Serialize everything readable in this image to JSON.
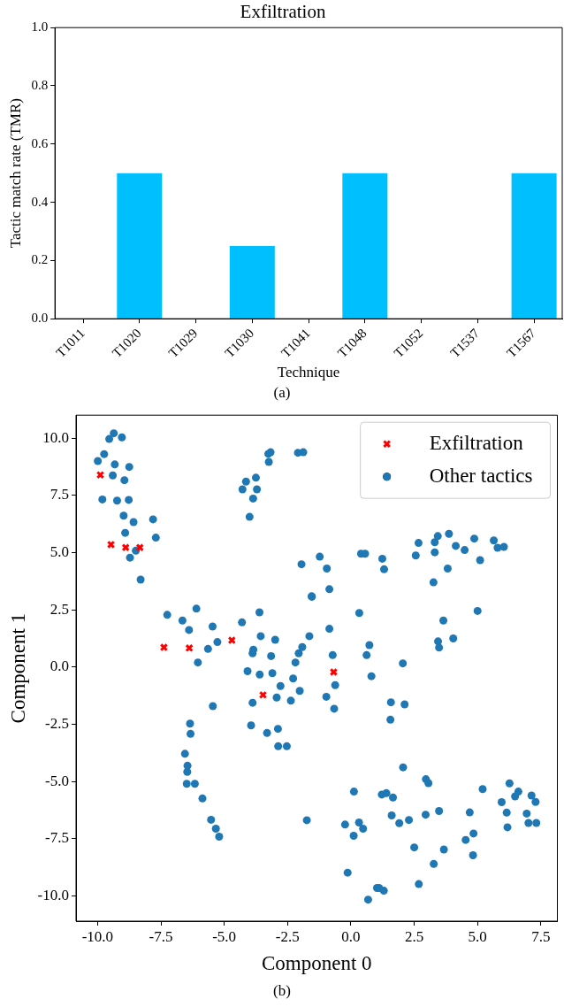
{
  "chart_data": [
    {
      "type": "bar",
      "title": "Exfiltration",
      "xlabel": "Technique",
      "ylabel": "Tactic match rate (TMR)",
      "categories": [
        "T1011",
        "T1020",
        "T1029",
        "T1030",
        "T1041",
        "T1048",
        "T1052",
        "T1537",
        "T1567"
      ],
      "values": [
        0,
        0.5,
        0,
        0.25,
        0,
        0.5,
        0,
        0,
        0.5
      ],
      "color": "#00bfff",
      "ylim": [
        0,
        1
      ],
      "yticks": [
        {
          "value": 0,
          "label": "0.0"
        },
        {
          "value": 0.2,
          "label": "0.2"
        },
        {
          "value": 0.4,
          "label": "0.4"
        },
        {
          "value": 0.6,
          "label": "0.6"
        },
        {
          "value": 0.8,
          "label": "0.8"
        },
        {
          "value": 1,
          "label": "1.0"
        }
      ],
      "grid": false,
      "legend": false,
      "annotations": [
        "(a)"
      ]
    },
    {
      "type": "scatter",
      "xlabel": "Component 0",
      "ylabel": "Component 1",
      "grid": false,
      "legend": "top right",
      "annotations": [
        "(b)"
      ],
      "xlim": [
        -10.85,
        8.15
      ],
      "xticks": [
        {
          "value": -10,
          "label": "-10.0"
        },
        {
          "value": -7.5,
          "label": "-7.5"
        },
        {
          "value": -5,
          "label": "-5.0"
        },
        {
          "value": -2.5,
          "label": "-2.5"
        },
        {
          "value": 0,
          "label": "0.0"
        },
        {
          "value": 2.5,
          "label": "2.5"
        },
        {
          "value": 5,
          "label": "5.0"
        },
        {
          "value": 7.5,
          "label": "7.5"
        }
      ],
      "ylim": [
        -11.1,
        11.0
      ],
      "yticks": [
        {
          "value": -10,
          "label": "-10.0"
        },
        {
          "value": -7.5,
          "label": "-7.5"
        },
        {
          "value": -5,
          "label": "-5.0"
        },
        {
          "value": -2.5,
          "label": "-2.5"
        },
        {
          "value": 0,
          "label": "0.0"
        },
        {
          "value": 2.5,
          "label": "2.5"
        },
        {
          "value": 5,
          "label": "5.0"
        },
        {
          "value": 7.5,
          "label": "7.5"
        },
        {
          "value": 10,
          "label": "10.0"
        }
      ],
      "series": [
        {
          "name": "Exfiltration",
          "color": "#ff0000",
          "marker": "cross",
          "x": [
            -9.89,
            -9.47,
            -8.89,
            -8.33,
            -7.38,
            -6.38,
            -4.7,
            -3.47,
            -0.68
          ],
          "values": [
            8.39,
            5.35,
            5.22,
            5.22,
            0.86,
            0.83,
            1.17,
            -1.22,
            -0.22
          ]
        },
        {
          "name": "Other tactics",
          "color": "#1f77b4",
          "marker": "circle",
          "x": [
            -9.36,
            -9.54,
            -9.04,
            -9.74,
            -9.99,
            -9.32,
            -8.75,
            -9.4,
            -8.94,
            -9.81,
            -9.23,
            -8.77,
            -8.97,
            -8.58,
            -7.81,
            -8.91,
            -7.7,
            -8.49,
            -8.72,
            -8.3,
            -3.26,
            -3.17,
            -3.24,
            -2.09,
            -1.88,
            -4.14,
            -3.75,
            -4.28,
            -3.71,
            -3.86,
            -4.0,
            -1.95,
            -1.55,
            -7.25,
            -6.65,
            -6.1,
            -6.39,
            -5.46,
            -5.64,
            -5.27,
            -6.04,
            -4.3,
            -3.61,
            -3.56,
            -2.99,
            -1.64,
            -3.85,
            -3.88,
            -3.15,
            -1.92,
            -2.06,
            -2.19,
            -4.08,
            -3.6,
            -3.1,
            -2.28,
            -1.23,
            -0.95,
            -0.85,
            -1.54,
            0.33,
            -0.85,
            -0.72,
            0.73,
            0.62,
            2.05,
            0.81,
            0.4,
            0.56,
            1.24,
            1.31,
            2.56,
            2.67,
            3.31,
            3.43,
            3.87,
            4.14,
            4.49,
            4.87,
            5.1,
            5.64,
            5.79,
            6.04,
            3.31,
            3.82,
            3.26,
            5.0,
            3.65,
            3.44,
            3.48,
            4.04,
            -2.78,
            -2.02,
            -2.93,
            -2.37,
            -3.88,
            -5.45,
            -6.35,
            -6.33,
            -3.94,
            -3.31,
            -2.88,
            -2.87,
            -2.53,
            -6.55,
            -6.45,
            -6.46,
            -6.48,
            -6.16,
            -5.86,
            -5.52,
            -5.33,
            -5.2,
            -1.74,
            -0.62,
            -0.97,
            -0.66,
            1.58,
            2.12,
            1.56,
            2.06,
            2.96,
            3.06,
            0.12,
            1.22,
            1.4,
            1.66,
            -0.23,
            0.32,
            0.48,
            0.11,
            1.61,
            1.91,
            2.29,
            2.95,
            3.48,
            5.2,
            4.69,
            6.26,
            6.61,
            6.48,
            5.95,
            7.13,
            7.29,
            6.15,
            6.94,
            6.18,
            7.01,
            7.32,
            4.84,
            4.53,
            4.82,
            2.5,
            3.67,
            3.27,
            -0.13,
            1.03,
            1.11,
            1.3,
            2.68,
            0.68
          ],
          "values": [
            10.21,
            9.96,
            10.03,
            9.3,
            9.0,
            8.85,
            8.74,
            8.37,
            8.16,
            7.32,
            7.27,
            7.3,
            6.61,
            6.33,
            6.45,
            5.86,
            5.65,
            5.08,
            4.78,
            3.82,
            9.31,
            9.38,
            8.96,
            9.36,
            9.38,
            8.1,
            8.27,
            7.76,
            7.76,
            7.36,
            6.56,
            4.49,
            3.09,
            2.28,
            2.03,
            2.55,
            1.62,
            1.77,
            0.79,
            1.09,
            0.2,
            1.95,
            2.39,
            1.35,
            1.19,
            1.35,
            0.76,
            0.6,
            0.48,
            0.87,
            0.6,
            0.2,
            -0.18,
            -0.33,
            -0.27,
            -0.5,
            4.82,
            4.3,
            3.4,
            3.07,
            2.36,
            1.67,
            0.52,
            0.96,
            0.52,
            0.16,
            -0.4,
            4.95,
            4.95,
            4.73,
            4.27,
            4.87,
            5.42,
            5.45,
            5.72,
            5.82,
            5.29,
            5.11,
            5.61,
            4.67,
            5.53,
            5.21,
            5.25,
            5.01,
            4.3,
            3.7,
            2.45,
            2.03,
            1.12,
            0.85,
            1.25,
            -0.83,
            -1.04,
            -1.33,
            -1.47,
            -1.56,
            -1.71,
            -2.47,
            -2.92,
            -2.55,
            -2.88,
            -2.7,
            -3.46,
            -3.46,
            -3.79,
            -4.31,
            -4.58,
            -5.1,
            -5.1,
            -5.74,
            -6.67,
            -7.06,
            -7.41,
            -6.69,
            -0.79,
            -1.3,
            -1.82,
            -1.54,
            -1.63,
            -2.3,
            -4.38,
            -4.9,
            -5.07,
            -5.44,
            -5.57,
            -5.51,
            -5.7,
            -6.88,
            -6.79,
            -7.06,
            -7.37,
            -6.48,
            -6.82,
            -6.68,
            -6.45,
            -6.29,
            -5.33,
            -6.35,
            -5.08,
            -5.44,
            -5.65,
            -5.9,
            -5.61,
            -5.89,
            -6.36,
            -6.4,
            -7.0,
            -6.81,
            -6.81,
            -7.27,
            -7.55,
            -8.22,
            -7.88,
            -7.97,
            -8.6,
            -8.98,
            -9.65,
            -9.65,
            -9.77,
            -9.48,
            -10.16
          ]
        }
      ]
    }
  ]
}
